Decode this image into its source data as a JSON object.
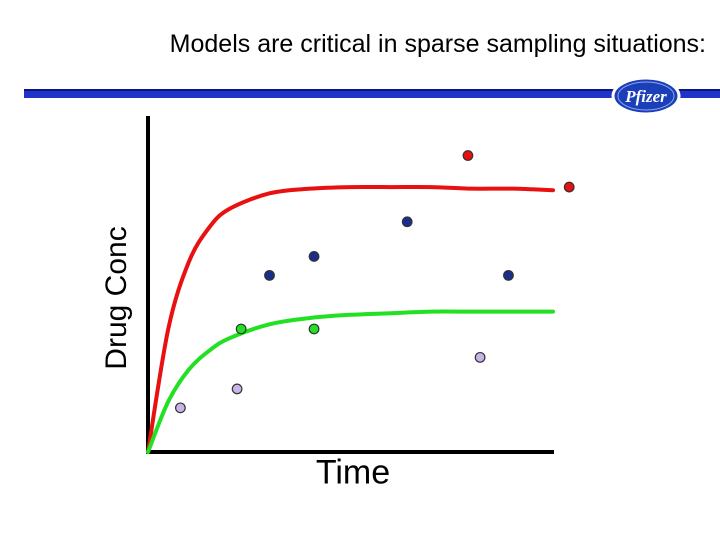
{
  "title": "Models are critical in sparse sampling situations:",
  "logo": {
    "text": "Pfizer",
    "color": "#1a3fb8"
  },
  "colors": {
    "bar": "#1f33c8",
    "red": "#e81010",
    "green": "#22e022",
    "blue": "#1a2f8c",
    "lavender": "#c8b4e6"
  },
  "chart_data": {
    "type": "scatter",
    "title": "",
    "xlabel": "Time",
    "ylabel": "Drug Conc",
    "xlim": [
      0,
      10
    ],
    "ylim": [
      0,
      10
    ],
    "series": [
      {
        "color": "#e81010",
        "kind": "line",
        "x": [
          0,
          0.5,
          1,
          1.5,
          2,
          3,
          4,
          5,
          6,
          7,
          8,
          9,
          10
        ],
        "y": [
          0,
          3.9,
          6.0,
          7.1,
          7.7,
          8.2,
          8.35,
          8.4,
          8.4,
          8.4,
          8.35,
          8.35,
          8.3
        ]
      },
      {
        "color": "#22e022",
        "kind": "line",
        "x": [
          0,
          0.5,
          1,
          1.5,
          2,
          3,
          4,
          5,
          6,
          7,
          8,
          9,
          10
        ],
        "y": [
          0,
          1.6,
          2.6,
          3.2,
          3.6,
          4.05,
          4.25,
          4.35,
          4.4,
          4.45,
          4.45,
          4.45,
          4.45
        ]
      },
      {
        "color": "#e81010",
        "kind": "points",
        "x": [
          7.9,
          10.4
        ],
        "y": [
          9.4,
          8.4
        ]
      },
      {
        "color": "#22e022",
        "kind": "points",
        "x": [
          2.3,
          4.1
        ],
        "y": [
          3.9,
          3.9
        ]
      },
      {
        "color": "#1a2f8c",
        "kind": "points",
        "x": [
          3.0,
          4.1,
          6.4,
          8.9
        ],
        "y": [
          5.6,
          6.2,
          7.3,
          5.6
        ]
      },
      {
        "color": "#c8b4e6",
        "kind": "points",
        "x": [
          0.8,
          2.2,
          8.2
        ],
        "y": [
          1.4,
          2.0,
          3.0
        ]
      }
    ]
  }
}
